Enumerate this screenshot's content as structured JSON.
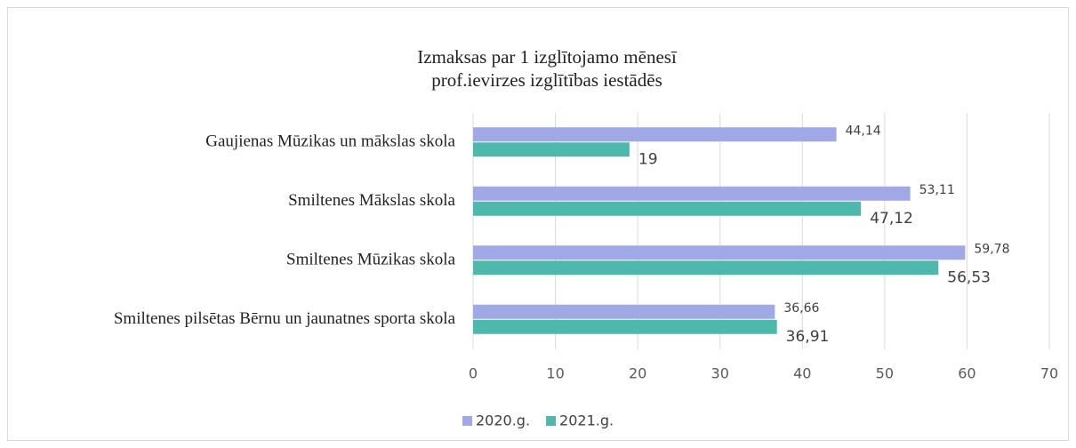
{
  "chart_data": {
    "type": "bar",
    "orientation": "horizontal",
    "title": [
      "Izmaksas par 1 izglītojamo mēnesī",
      "prof.ievirzes izglītības iestādēs"
    ],
    "categories": [
      "Gaujienas Mūzikas un mākslas skola",
      "Smiltenes Mākslas skola",
      "Smiltenes Mūzikas skola",
      "Smiltenes pilsētas Bērnu un jaunatnes sporta skola"
    ],
    "series": [
      {
        "name": "2020.g.",
        "color": "#a0a9e6",
        "values": [
          44.14,
          53.11,
          59.78,
          36.66
        ],
        "value_labels": [
          "44,14",
          "53,11",
          "59,78",
          "36,66"
        ]
      },
      {
        "name": "2021.g.",
        "color": "#4fb8ad",
        "values": [
          19,
          47.12,
          56.53,
          36.91
        ],
        "value_labels": [
          "19",
          "47,12",
          "56,53",
          "36,91"
        ]
      }
    ],
    "xlim": [
      0,
      70
    ],
    "xticks": [
      0,
      10,
      20,
      30,
      40,
      50,
      60,
      70
    ],
    "grid": true,
    "legend": "bottom"
  }
}
